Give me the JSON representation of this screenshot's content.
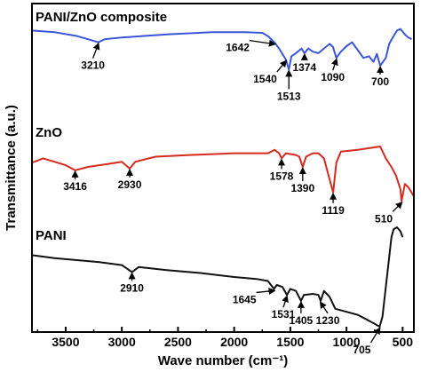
{
  "chart_data": {
    "type": "line",
    "xlabel": "Wave number (cm⁻¹)",
    "ylabel": "Transmittance (a.u.)",
    "xlim": [
      3800,
      400
    ],
    "x_reversed": true,
    "x_ticks": [
      3500,
      3000,
      2500,
      2000,
      1500,
      1000,
      500
    ],
    "y_ticks_shown": false,
    "grid": false,
    "series": [
      {
        "name": "PANI/ZnO composite",
        "color": "#3b55d8",
        "points": [
          [
            3800,
            0.95
          ],
          [
            3600,
            0.93
          ],
          [
            3400,
            0.88
          ],
          [
            3210,
            0.8
          ],
          [
            3150,
            0.84
          ],
          [
            3000,
            0.86
          ],
          [
            2600,
            0.9
          ],
          [
            2200,
            0.93
          ],
          [
            1900,
            0.93
          ],
          [
            1750,
            0.92
          ],
          [
            1700,
            0.88
          ],
          [
            1642,
            0.8
          ],
          [
            1600,
            0.72
          ],
          [
            1540,
            0.58
          ],
          [
            1513,
            0.45
          ],
          [
            1490,
            0.62
          ],
          [
            1450,
            0.66
          ],
          [
            1400,
            0.72
          ],
          [
            1374,
            0.66
          ],
          [
            1340,
            0.72
          ],
          [
            1300,
            0.68
          ],
          [
            1250,
            0.66
          ],
          [
            1200,
            0.72
          ],
          [
            1150,
            0.78
          ],
          [
            1120,
            0.74
          ],
          [
            1090,
            0.6
          ],
          [
            1050,
            0.68
          ],
          [
            1000,
            0.75
          ],
          [
            950,
            0.8
          ],
          [
            900,
            0.7
          ],
          [
            850,
            0.6
          ],
          [
            800,
            0.62
          ],
          [
            760,
            0.55
          ],
          [
            730,
            0.65
          ],
          [
            700,
            0.5
          ],
          [
            650,
            0.6
          ],
          [
            620,
            0.78
          ],
          [
            580,
            0.88
          ],
          [
            550,
            0.95
          ],
          [
            520,
            0.97
          ],
          [
            480,
            0.9
          ],
          [
            450,
            0.86
          ],
          [
            420,
            0.84
          ]
        ]
      },
      {
        "name": "ZnO",
        "color": "#d42a20",
        "points": [
          [
            3800,
            0.55
          ],
          [
            3700,
            0.6
          ],
          [
            3600,
            0.56
          ],
          [
            3500,
            0.52
          ],
          [
            3416,
            0.46
          ],
          [
            3300,
            0.5
          ],
          [
            3100,
            0.54
          ],
          [
            3000,
            0.56
          ],
          [
            2930,
            0.48
          ],
          [
            2880,
            0.56
          ],
          [
            2700,
            0.62
          ],
          [
            2400,
            0.64
          ],
          [
            2000,
            0.66
          ],
          [
            1700,
            0.66
          ],
          [
            1640,
            0.7
          ],
          [
            1600,
            0.66
          ],
          [
            1578,
            0.6
          ],
          [
            1540,
            0.66
          ],
          [
            1450,
            0.64
          ],
          [
            1420,
            0.62
          ],
          [
            1390,
            0.5
          ],
          [
            1360,
            0.62
          ],
          [
            1300,
            0.66
          ],
          [
            1250,
            0.66
          ],
          [
            1200,
            0.6
          ],
          [
            1160,
            0.4
          ],
          [
            1119,
            0.2
          ],
          [
            1090,
            0.55
          ],
          [
            1050,
            0.68
          ],
          [
            900,
            0.7
          ],
          [
            800,
            0.72
          ],
          [
            700,
            0.74
          ],
          [
            650,
            0.6
          ],
          [
            600,
            0.5
          ],
          [
            560,
            0.4
          ],
          [
            520,
            0.24
          ],
          [
            510,
            0.1
          ],
          [
            480,
            0.3
          ],
          [
            450,
            0.26
          ],
          [
            420,
            0.2
          ],
          [
            400,
            0.15
          ]
        ]
      },
      {
        "name": "PANI",
        "color": "#111111",
        "points": [
          [
            3800,
            0.72
          ],
          [
            3600,
            0.69
          ],
          [
            3400,
            0.67
          ],
          [
            3200,
            0.65
          ],
          [
            3000,
            0.62
          ],
          [
            2910,
            0.55
          ],
          [
            2850,
            0.6
          ],
          [
            2600,
            0.57
          ],
          [
            2300,
            0.54
          ],
          [
            2000,
            0.5
          ],
          [
            1800,
            0.48
          ],
          [
            1700,
            0.46
          ],
          [
            1645,
            0.38
          ],
          [
            1620,
            0.42
          ],
          [
            1570,
            0.4
          ],
          [
            1531,
            0.32
          ],
          [
            1500,
            0.38
          ],
          [
            1450,
            0.36
          ],
          [
            1405,
            0.26
          ],
          [
            1380,
            0.32
          ],
          [
            1300,
            0.33
          ],
          [
            1250,
            0.32
          ],
          [
            1230,
            0.26
          ],
          [
            1200,
            0.36
          ],
          [
            1150,
            0.3
          ],
          [
            1100,
            0.18
          ],
          [
            1000,
            0.15
          ],
          [
            900,
            0.12
          ],
          [
            800,
            0.06
          ],
          [
            750,
            0.03
          ],
          [
            705,
            0.0
          ],
          [
            680,
            0.1
          ],
          [
            650,
            0.4
          ],
          [
            620,
            0.7
          ],
          [
            600,
            0.9
          ],
          [
            580,
            0.98
          ],
          [
            550,
            1.0
          ],
          [
            520,
            0.96
          ],
          [
            500,
            0.9
          ]
        ]
      }
    ],
    "labels": [
      {
        "text": "PANI/ZnO composite",
        "series": 0
      },
      {
        "text": "ZnO",
        "series": 1
      },
      {
        "text": "PANI",
        "series": 2
      }
    ],
    "annotations": [
      {
        "series": 0,
        "x": 3210,
        "text": "3210"
      },
      {
        "series": 0,
        "x": 1642,
        "text": "1642"
      },
      {
        "series": 0,
        "x": 1540,
        "text": "1540"
      },
      {
        "series": 0,
        "x": 1513,
        "text": "1513"
      },
      {
        "series": 0,
        "x": 1374,
        "text": "1374"
      },
      {
        "series": 0,
        "x": 1090,
        "text": "1090"
      },
      {
        "series": 0,
        "x": 700,
        "text": "700"
      },
      {
        "series": 1,
        "x": 3416,
        "text": "3416"
      },
      {
        "series": 1,
        "x": 2930,
        "text": "2930"
      },
      {
        "series": 1,
        "x": 1578,
        "text": "1578"
      },
      {
        "series": 1,
        "x": 1390,
        "text": "1390"
      },
      {
        "series": 1,
        "x": 1119,
        "text": "1119"
      },
      {
        "series": 1,
        "x": 510,
        "text": "510"
      },
      {
        "series": 2,
        "x": 2910,
        "text": "2910"
      },
      {
        "series": 2,
        "x": 1645,
        "text": "1645"
      },
      {
        "series": 2,
        "x": 1531,
        "text": "1531"
      },
      {
        "series": 2,
        "x": 1405,
        "text": "1405"
      },
      {
        "series": 2,
        "x": 1230,
        "text": "1230"
      },
      {
        "series": 2,
        "x": 705,
        "text": "705"
      }
    ]
  }
}
